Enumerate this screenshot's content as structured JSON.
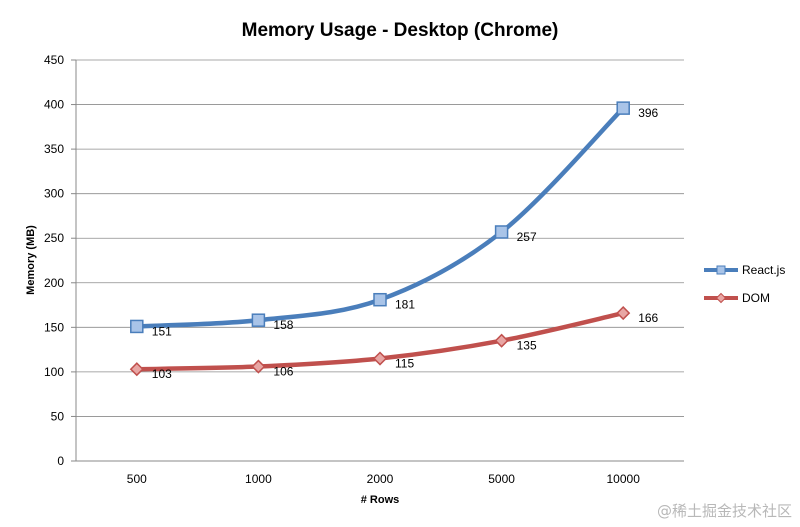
{
  "chart_data": {
    "type": "line",
    "title": "Memory Usage - Desktop (Chrome)",
    "xlabel": "# Rows",
    "ylabel": "Memory (MB)",
    "categories": [
      "500",
      "1000",
      "2000",
      "5000",
      "10000"
    ],
    "ylim": [
      0,
      450
    ],
    "yticks": [
      0,
      50,
      100,
      150,
      200,
      250,
      300,
      350,
      400,
      450
    ],
    "grid": "horizontal",
    "legend": "right",
    "series": [
      {
        "name": "React.js",
        "values": [
          151,
          158,
          181,
          257,
          396
        ],
        "color": "#4a7ebb",
        "marker": "square"
      },
      {
        "name": "DOM",
        "values": [
          103,
          106,
          115,
          135,
          166
        ],
        "color": "#c0504d",
        "marker": "diamond"
      }
    ]
  },
  "watermark": "@稀土掘金技术社区"
}
